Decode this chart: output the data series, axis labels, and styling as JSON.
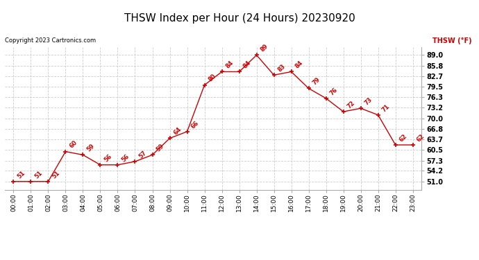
{
  "title": "THSW Index per Hour (24 Hours) 20230920",
  "copyright": "Copyright 2023 Cartronics.com",
  "legend_label": "THSW (°F)",
  "hours": [
    0,
    1,
    2,
    3,
    4,
    5,
    6,
    7,
    8,
    9,
    10,
    11,
    12,
    13,
    14,
    15,
    16,
    17,
    18,
    19,
    20,
    21,
    22,
    23
  ],
  "values": [
    51,
    51,
    51,
    60,
    59,
    56,
    56,
    57,
    59,
    64,
    66,
    80,
    84,
    84,
    89,
    83,
    84,
    79,
    76,
    72,
    73,
    71,
    62,
    62
  ],
  "x_labels": [
    "00:00",
    "01:00",
    "02:00",
    "03:00",
    "04:00",
    "05:00",
    "06:00",
    "07:00",
    "08:00",
    "09:00",
    "10:00",
    "11:00",
    "12:00",
    "13:00",
    "14:00",
    "15:00",
    "16:00",
    "17:00",
    "18:00",
    "19:00",
    "20:00",
    "21:00",
    "22:00",
    "23:00"
  ],
  "y_ticks": [
    51.0,
    54.2,
    57.3,
    60.5,
    63.7,
    66.8,
    70.0,
    73.2,
    76.3,
    79.5,
    82.7,
    85.8,
    89.0
  ],
  "ylim": [
    48.5,
    91.5
  ],
  "line_color": "#cc0000",
  "grid_color": "#cccccc",
  "bg_color": "#ffffff",
  "title_fontsize": 11,
  "tick_fontsize": 6.5,
  "annotation_fontsize": 6,
  "copyright_fontsize": 6,
  "legend_fontsize": 7
}
